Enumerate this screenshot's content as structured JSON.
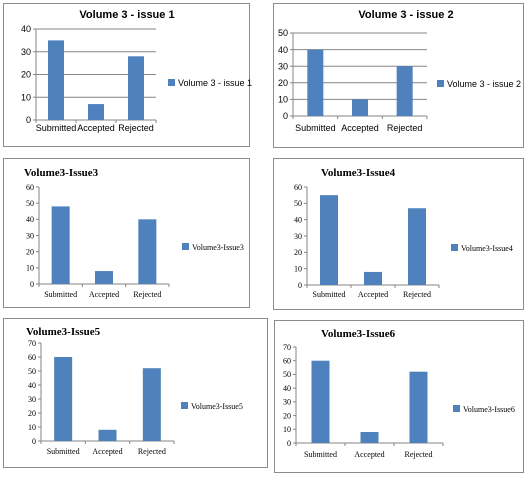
{
  "chart_data": [
    {
      "type": "bar",
      "title": "Volume 3 - issue 1",
      "categories": [
        "Submitted",
        "Accepted",
        "Rejected"
      ],
      "series": [
        {
          "name": "Volume 3 - issue 1",
          "values": [
            35,
            7,
            28
          ]
        }
      ],
      "ylim": [
        0,
        40
      ],
      "yticks": [
        0,
        10,
        20,
        30,
        40
      ],
      "grid": true,
      "legend": "right",
      "bar_color": "#4f81bd"
    },
    {
      "type": "bar",
      "title": "Volume 3 - issue 2",
      "categories": [
        "Submitted",
        "Accepted",
        "Rejected"
      ],
      "series": [
        {
          "name": "Volume 3 - issue 2",
          "values": [
            40,
            10,
            30
          ]
        }
      ],
      "ylim": [
        0,
        50
      ],
      "yticks": [
        0,
        10,
        20,
        30,
        40,
        50
      ],
      "grid": true,
      "legend": "right",
      "bar_color": "#4f81bd"
    },
    {
      "type": "bar",
      "title": "Volume3-Issue3",
      "categories": [
        "Submitted",
        "Accepted",
        "Rejected"
      ],
      "series": [
        {
          "name": "Volume3-Issue3",
          "values": [
            48,
            8,
            40
          ]
        }
      ],
      "ylim": [
        0,
        60
      ],
      "yticks": [
        0,
        10,
        20,
        30,
        40,
        50,
        60
      ],
      "grid": false,
      "legend": "right",
      "bar_color": "#4f81bd"
    },
    {
      "type": "bar",
      "title": "Volume3-Issue4",
      "categories": [
        "Submitted",
        "Accepted",
        "Rejected"
      ],
      "series": [
        {
          "name": "Volume3-Issue4",
          "values": [
            55,
            8,
            47
          ]
        }
      ],
      "ylim": [
        0,
        60
      ],
      "yticks": [
        0,
        10,
        20,
        30,
        40,
        50,
        60
      ],
      "grid": false,
      "legend": "right",
      "bar_color": "#4f81bd"
    },
    {
      "type": "bar",
      "title": "Volume3-Issue5",
      "categories": [
        "Submitted",
        "Accepted",
        "Rejected"
      ],
      "series": [
        {
          "name": "Volume3-Issue5",
          "values": [
            60,
            8,
            52
          ]
        }
      ],
      "ylim": [
        0,
        70
      ],
      "yticks": [
        0,
        10,
        20,
        30,
        40,
        50,
        60,
        70
      ],
      "grid": false,
      "legend": "right",
      "bar_color": "#4f81bd"
    },
    {
      "type": "bar",
      "title": "Volume3-Issue6",
      "categories": [
        "Submitted",
        "Accepted",
        "Rejected"
      ],
      "series": [
        {
          "name": "Volume3-Issue6",
          "values": [
            60,
            8,
            52
          ]
        }
      ],
      "ylim": [
        0,
        70
      ],
      "yticks": [
        0,
        10,
        20,
        30,
        40,
        50,
        60,
        70
      ],
      "grid": false,
      "legend": "right",
      "bar_color": "#4f81bd"
    }
  ]
}
